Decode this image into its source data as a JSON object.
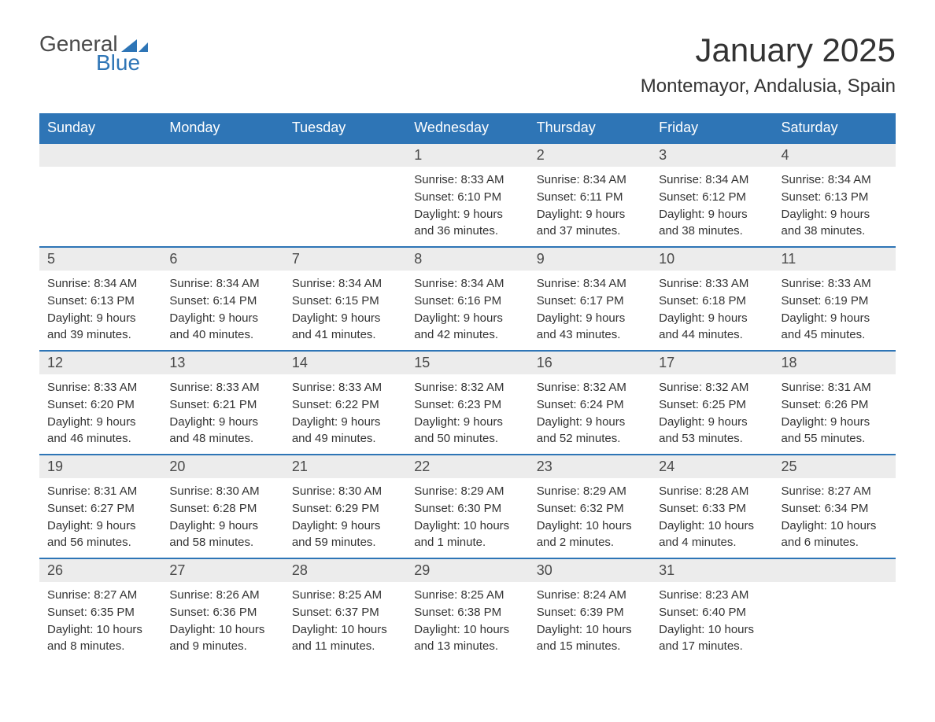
{
  "logo": {
    "text_general": "General",
    "text_blue": "Blue",
    "shape_color": "#2e75b6"
  },
  "title": "January 2025",
  "location": "Montemayor, Andalusia, Spain",
  "header_bg_color": "#2e75b6",
  "header_text_color": "#ffffff",
  "day_number_bg": "#ececec",
  "row_border_color": "#2e75b6",
  "text_color": "#333333",
  "weekdays": [
    "Sunday",
    "Monday",
    "Tuesday",
    "Wednesday",
    "Thursday",
    "Friday",
    "Saturday"
  ],
  "weeks": [
    [
      {
        "day": "",
        "sunrise": "",
        "sunset": "",
        "daylight": ""
      },
      {
        "day": "",
        "sunrise": "",
        "sunset": "",
        "daylight": ""
      },
      {
        "day": "",
        "sunrise": "",
        "sunset": "",
        "daylight": ""
      },
      {
        "day": "1",
        "sunrise": "Sunrise: 8:33 AM",
        "sunset": "Sunset: 6:10 PM",
        "daylight": "Daylight: 9 hours and 36 minutes."
      },
      {
        "day": "2",
        "sunrise": "Sunrise: 8:34 AM",
        "sunset": "Sunset: 6:11 PM",
        "daylight": "Daylight: 9 hours and 37 minutes."
      },
      {
        "day": "3",
        "sunrise": "Sunrise: 8:34 AM",
        "sunset": "Sunset: 6:12 PM",
        "daylight": "Daylight: 9 hours and 38 minutes."
      },
      {
        "day": "4",
        "sunrise": "Sunrise: 8:34 AM",
        "sunset": "Sunset: 6:13 PM",
        "daylight": "Daylight: 9 hours and 38 minutes."
      }
    ],
    [
      {
        "day": "5",
        "sunrise": "Sunrise: 8:34 AM",
        "sunset": "Sunset: 6:13 PM",
        "daylight": "Daylight: 9 hours and 39 minutes."
      },
      {
        "day": "6",
        "sunrise": "Sunrise: 8:34 AM",
        "sunset": "Sunset: 6:14 PM",
        "daylight": "Daylight: 9 hours and 40 minutes."
      },
      {
        "day": "7",
        "sunrise": "Sunrise: 8:34 AM",
        "sunset": "Sunset: 6:15 PM",
        "daylight": "Daylight: 9 hours and 41 minutes."
      },
      {
        "day": "8",
        "sunrise": "Sunrise: 8:34 AM",
        "sunset": "Sunset: 6:16 PM",
        "daylight": "Daylight: 9 hours and 42 minutes."
      },
      {
        "day": "9",
        "sunrise": "Sunrise: 8:34 AM",
        "sunset": "Sunset: 6:17 PM",
        "daylight": "Daylight: 9 hours and 43 minutes."
      },
      {
        "day": "10",
        "sunrise": "Sunrise: 8:33 AM",
        "sunset": "Sunset: 6:18 PM",
        "daylight": "Daylight: 9 hours and 44 minutes."
      },
      {
        "day": "11",
        "sunrise": "Sunrise: 8:33 AM",
        "sunset": "Sunset: 6:19 PM",
        "daylight": "Daylight: 9 hours and 45 minutes."
      }
    ],
    [
      {
        "day": "12",
        "sunrise": "Sunrise: 8:33 AM",
        "sunset": "Sunset: 6:20 PM",
        "daylight": "Daylight: 9 hours and 46 minutes."
      },
      {
        "day": "13",
        "sunrise": "Sunrise: 8:33 AM",
        "sunset": "Sunset: 6:21 PM",
        "daylight": "Daylight: 9 hours and 48 minutes."
      },
      {
        "day": "14",
        "sunrise": "Sunrise: 8:33 AM",
        "sunset": "Sunset: 6:22 PM",
        "daylight": "Daylight: 9 hours and 49 minutes."
      },
      {
        "day": "15",
        "sunrise": "Sunrise: 8:32 AM",
        "sunset": "Sunset: 6:23 PM",
        "daylight": "Daylight: 9 hours and 50 minutes."
      },
      {
        "day": "16",
        "sunrise": "Sunrise: 8:32 AM",
        "sunset": "Sunset: 6:24 PM",
        "daylight": "Daylight: 9 hours and 52 minutes."
      },
      {
        "day": "17",
        "sunrise": "Sunrise: 8:32 AM",
        "sunset": "Sunset: 6:25 PM",
        "daylight": "Daylight: 9 hours and 53 minutes."
      },
      {
        "day": "18",
        "sunrise": "Sunrise: 8:31 AM",
        "sunset": "Sunset: 6:26 PM",
        "daylight": "Daylight: 9 hours and 55 minutes."
      }
    ],
    [
      {
        "day": "19",
        "sunrise": "Sunrise: 8:31 AM",
        "sunset": "Sunset: 6:27 PM",
        "daylight": "Daylight: 9 hours and 56 minutes."
      },
      {
        "day": "20",
        "sunrise": "Sunrise: 8:30 AM",
        "sunset": "Sunset: 6:28 PM",
        "daylight": "Daylight: 9 hours and 58 minutes."
      },
      {
        "day": "21",
        "sunrise": "Sunrise: 8:30 AM",
        "sunset": "Sunset: 6:29 PM",
        "daylight": "Daylight: 9 hours and 59 minutes."
      },
      {
        "day": "22",
        "sunrise": "Sunrise: 8:29 AM",
        "sunset": "Sunset: 6:30 PM",
        "daylight": "Daylight: 10 hours and 1 minute."
      },
      {
        "day": "23",
        "sunrise": "Sunrise: 8:29 AM",
        "sunset": "Sunset: 6:32 PM",
        "daylight": "Daylight: 10 hours and 2 minutes."
      },
      {
        "day": "24",
        "sunrise": "Sunrise: 8:28 AM",
        "sunset": "Sunset: 6:33 PM",
        "daylight": "Daylight: 10 hours and 4 minutes."
      },
      {
        "day": "25",
        "sunrise": "Sunrise: 8:27 AM",
        "sunset": "Sunset: 6:34 PM",
        "daylight": "Daylight: 10 hours and 6 minutes."
      }
    ],
    [
      {
        "day": "26",
        "sunrise": "Sunrise: 8:27 AM",
        "sunset": "Sunset: 6:35 PM",
        "daylight": "Daylight: 10 hours and 8 minutes."
      },
      {
        "day": "27",
        "sunrise": "Sunrise: 8:26 AM",
        "sunset": "Sunset: 6:36 PM",
        "daylight": "Daylight: 10 hours and 9 minutes."
      },
      {
        "day": "28",
        "sunrise": "Sunrise: 8:25 AM",
        "sunset": "Sunset: 6:37 PM",
        "daylight": "Daylight: 10 hours and 11 minutes."
      },
      {
        "day": "29",
        "sunrise": "Sunrise: 8:25 AM",
        "sunset": "Sunset: 6:38 PM",
        "daylight": "Daylight: 10 hours and 13 minutes."
      },
      {
        "day": "30",
        "sunrise": "Sunrise: 8:24 AM",
        "sunset": "Sunset: 6:39 PM",
        "daylight": "Daylight: 10 hours and 15 minutes."
      },
      {
        "day": "31",
        "sunrise": "Sunrise: 8:23 AM",
        "sunset": "Sunset: 6:40 PM",
        "daylight": "Daylight: 10 hours and 17 minutes."
      },
      {
        "day": "",
        "sunrise": "",
        "sunset": "",
        "daylight": ""
      }
    ]
  ]
}
